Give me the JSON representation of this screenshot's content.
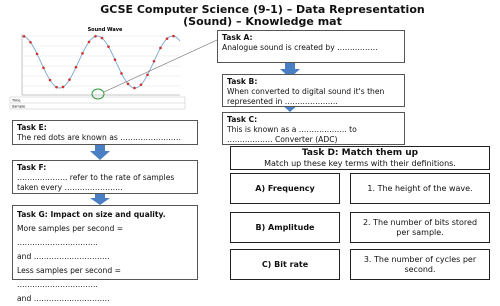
{
  "title": "GCSE Computer Science (9-1) – Data Representation (Sound) – Knowledge mat",
  "sound_wave": {
    "title": "Sound Wave",
    "row_labels": [
      "Time",
      "Sample"
    ]
  },
  "tasks": {
    "a": {
      "heading": "Task A:",
      "text": "Analogue sound is created by ……………."
    },
    "b": {
      "heading": "Task B:",
      "text": "When converted to digital sound it's then represented in …………………"
    },
    "c": {
      "heading": "Task C:",
      "text": "This is known as a ………………. to ……………… Converter (ADC)"
    },
    "e": {
      "heading": "Task E:",
      "text": "The red dots are known as ……………………"
    },
    "f": {
      "heading": "Task F:",
      "text": "……………….. refer to the rate of samples taken every ………………….."
    },
    "g": {
      "heading": "Task G: Impact on size and quality.",
      "lines": [
        "More samples per second = …………………………..",
        "and …………………………",
        "Less samples per second = …………………………..",
        "and …………………………"
      ]
    }
  },
  "match": {
    "heading": "Task D: Match them up",
    "instruction": "Match up these key terms with their definitions.",
    "terms": [
      "A) Frequency",
      "B) Amplitude",
      "C) Bit rate"
    ],
    "definitions": [
      "1. The height of the wave.",
      "2. The number of bits stored per sample.",
      "3. The number of cycles per second."
    ]
  }
}
